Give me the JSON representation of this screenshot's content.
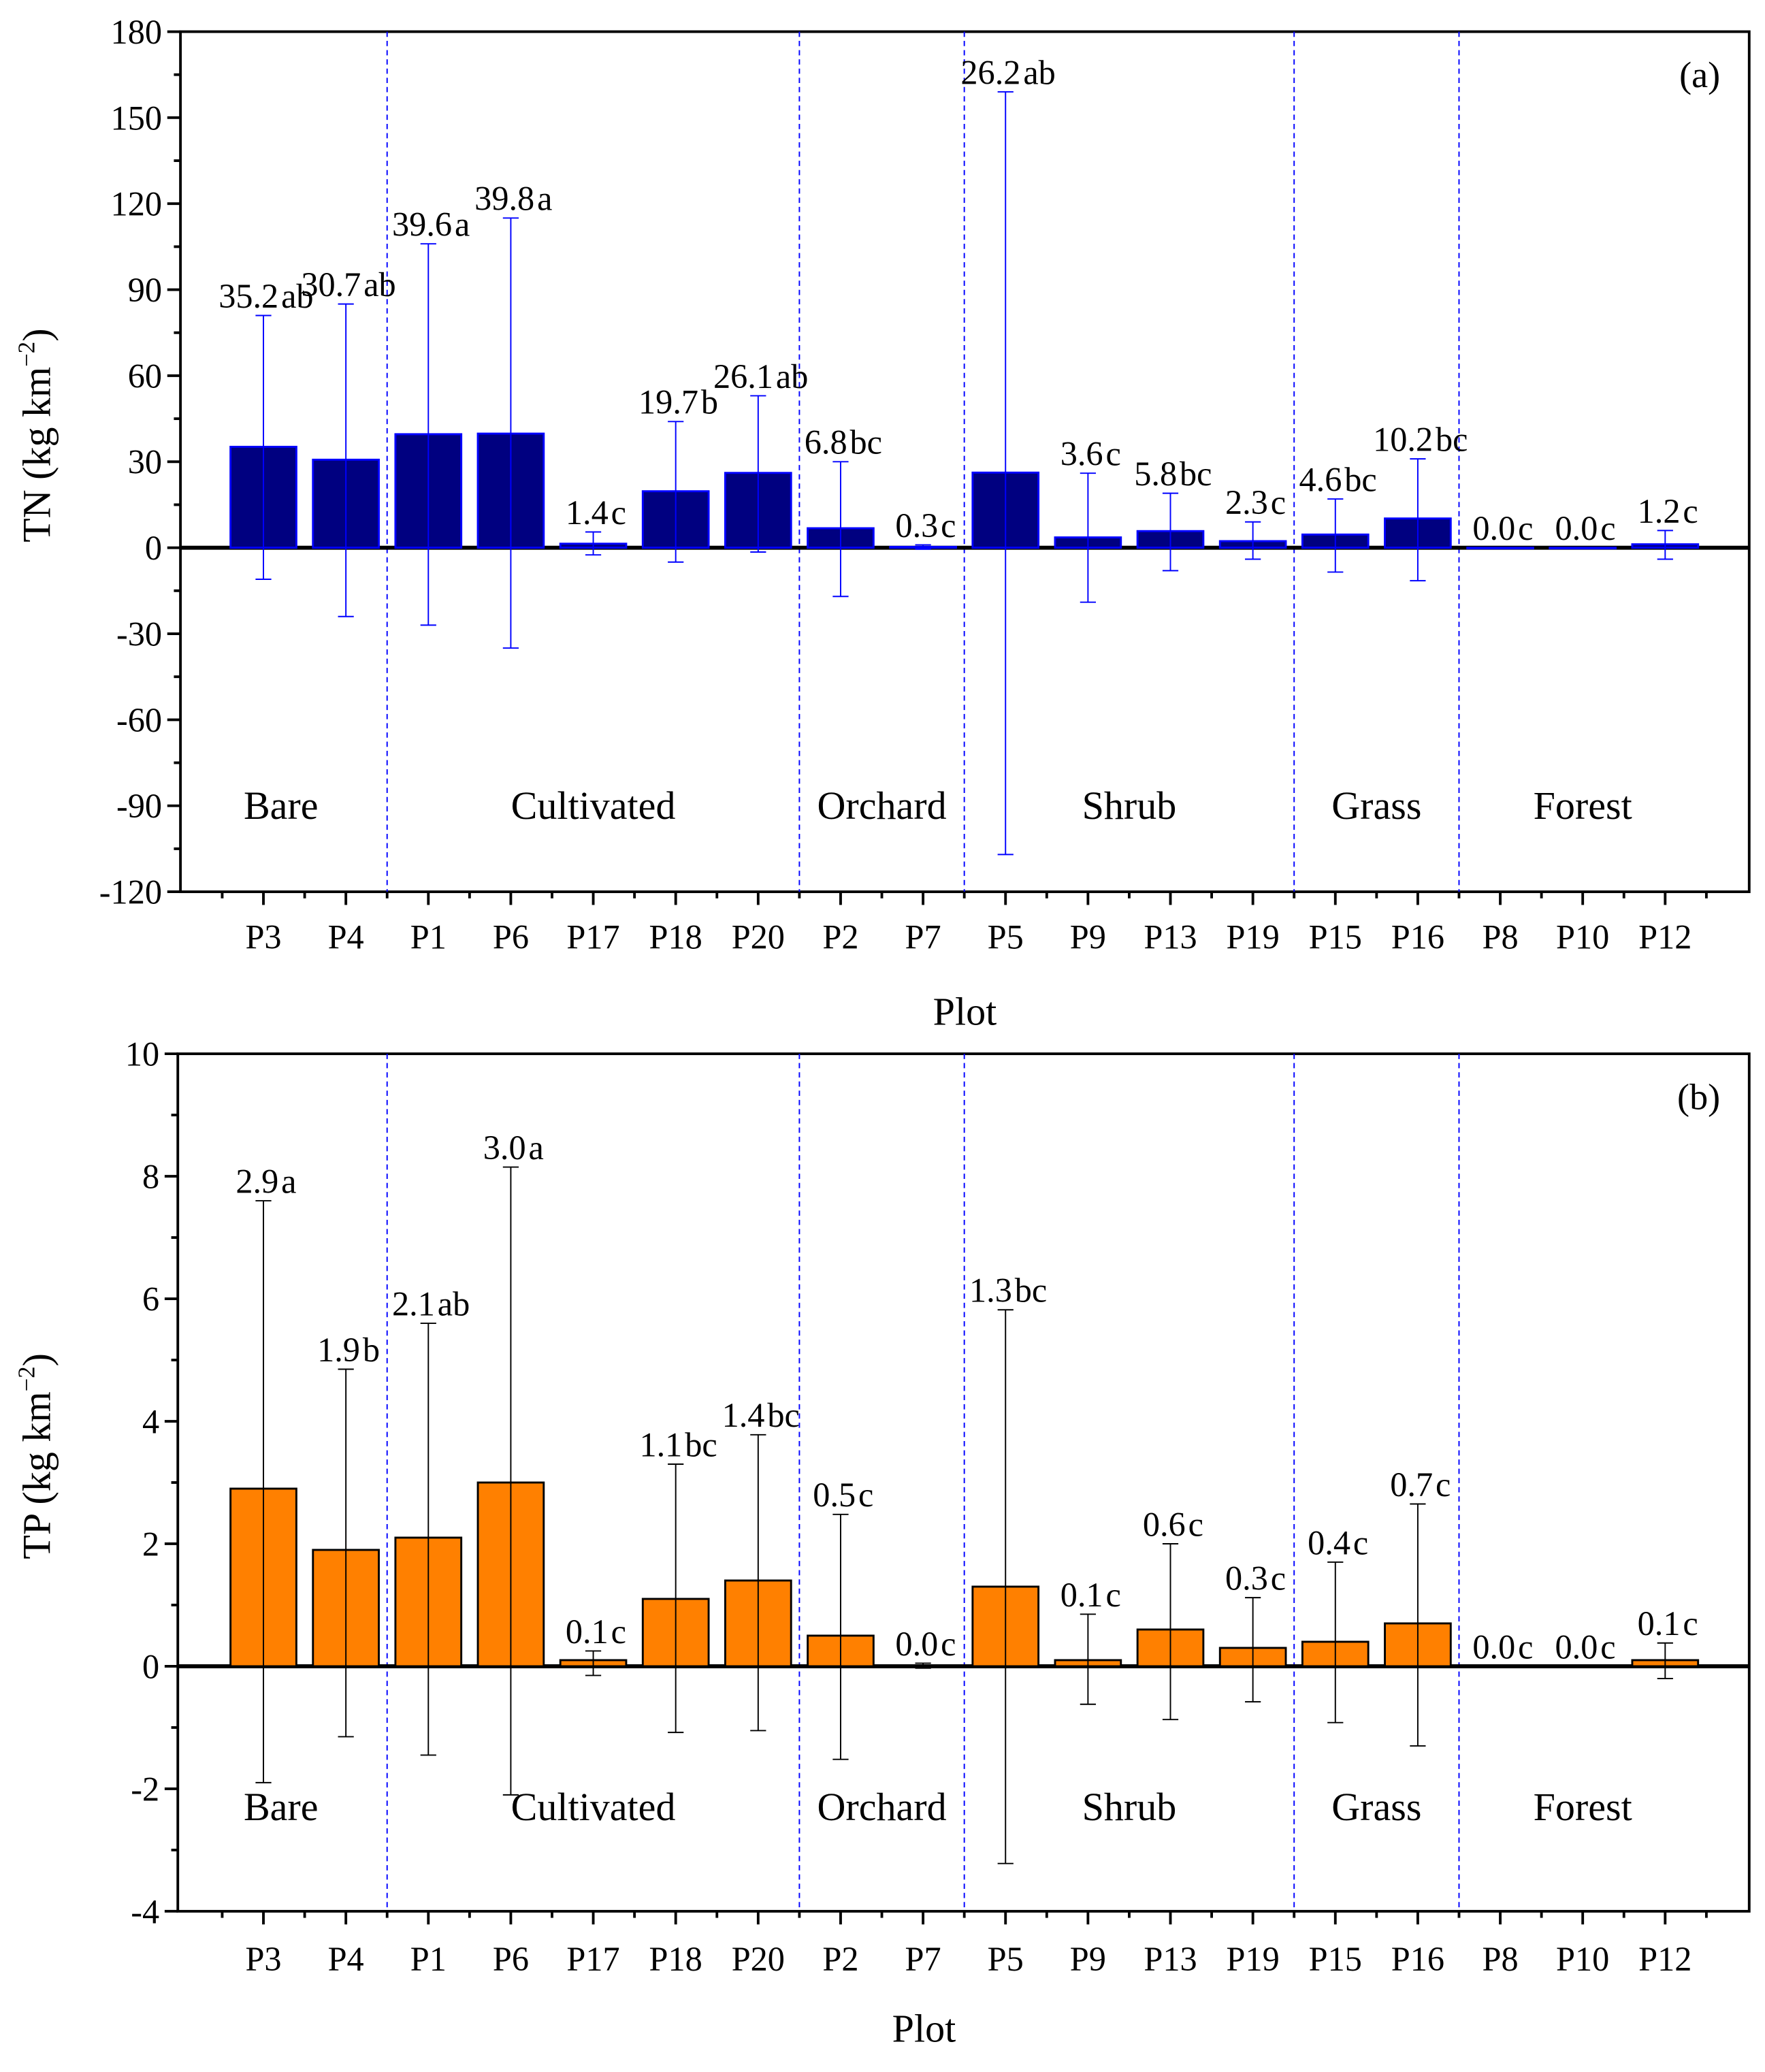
{
  "chart_data": [
    {
      "type": "bar",
      "panel_label": "(a)",
      "title": "",
      "xlabel": "Plot",
      "ylabel": "TN (kg km",
      "ylabel_sup": "−2",
      "ylabel_close": ")",
      "ylim": [
        -120,
        180
      ],
      "yticks": [
        -120,
        -90,
        -60,
        -30,
        0,
        30,
        60,
        90,
        120,
        150,
        180
      ],
      "bar_color": "#000080",
      "bar_edge": "#0000ff",
      "error_color": "#0000ff",
      "categories": [
        "P3",
        "P4",
        "P1",
        "P6",
        "P17",
        "P18",
        "P20",
        "P2",
        "P7",
        "P5",
        "P9",
        "P13",
        "P19",
        "P15",
        "P16",
        "P8",
        "P10",
        "P12"
      ],
      "values": [
        35.2,
        30.7,
        39.6,
        39.8,
        1.4,
        19.7,
        26.1,
        6.8,
        0.3,
        26.2,
        3.6,
        5.8,
        2.3,
        4.6,
        10.2,
        0.0,
        0.0,
        1.2
      ],
      "error_upper": [
        81,
        85,
        106,
        115,
        5.5,
        44,
        53,
        30,
        1,
        159,
        26,
        19,
        9,
        17,
        31,
        0,
        0,
        6
      ],
      "error_lower": [
        -11,
        -24,
        -27,
        -35,
        -2.5,
        -5,
        -1.5,
        -17,
        -0.5,
        -107,
        -19,
        -8,
        -4,
        -8.5,
        -11.5,
        0,
        0,
        -4
      ],
      "letters": [
        "ab",
        "ab",
        "a",
        "a",
        "c",
        "b",
        "ab",
        "bc",
        "c",
        "ab",
        "c",
        "bc",
        "c",
        "bc",
        "bc",
        "c",
        "c",
        "c"
      ],
      "groups": [
        {
          "label": "Bare",
          "start": 0,
          "end": 1
        },
        {
          "label": "Cultivated",
          "start": 2,
          "end": 6
        },
        {
          "label": "Orchard",
          "start": 7,
          "end": 8
        },
        {
          "label": "Shrub",
          "start": 9,
          "end": 12
        },
        {
          "label": "Grass",
          "start": 13,
          "end": 14
        },
        {
          "label": "Forest",
          "start": 15,
          "end": 17
        }
      ],
      "group_label_y": -90
    },
    {
      "type": "bar",
      "panel_label": "(b)",
      "title": "",
      "xlabel": "Plot",
      "ylabel": "TP (kg km",
      "ylabel_sup": "−2",
      "ylabel_close": ")",
      "ylim": [
        -4,
        10
      ],
      "yticks": [
        -4,
        -2,
        0,
        2,
        4,
        6,
        8,
        10
      ],
      "bar_color": "#ff8000",
      "bar_edge": "#000000",
      "error_color": "#000000",
      "categories": [
        "P3",
        "P4",
        "P1",
        "P6",
        "P17",
        "P18",
        "P20",
        "P2",
        "P7",
        "P5",
        "P9",
        "P13",
        "P19",
        "P15",
        "P16",
        "P8",
        "P10",
        "P12"
      ],
      "values": [
        2.9,
        1.9,
        2.1,
        3.0,
        0.1,
        1.1,
        1.4,
        0.5,
        0.0,
        1.3,
        0.1,
        0.6,
        0.3,
        0.4,
        0.7,
        0.0,
        0.0,
        0.1
      ],
      "error_upper": [
        7.6,
        4.85,
        5.6,
        8.15,
        0.25,
        3.3,
        3.78,
        2.48,
        0.05,
        5.82,
        0.85,
        2.0,
        1.12,
        1.7,
        2.65,
        0,
        0,
        0.38
      ],
      "error_lower": [
        -1.9,
        -1.15,
        -1.45,
        -2.1,
        -0.15,
        -1.08,
        -1.05,
        -1.52,
        -0.03,
        -3.22,
        -0.62,
        -0.87,
        -0.58,
        -0.92,
        -1.3,
        0,
        0,
        -0.2
      ],
      "letters": [
        "a",
        "b",
        "ab",
        "a",
        "c",
        "bc",
        "bc",
        "c",
        "c",
        "bc",
        "c",
        "c",
        "c",
        "c",
        "c",
        "c",
        "c",
        "c"
      ],
      "groups": [
        {
          "label": "Bare",
          "start": 0,
          "end": 1
        },
        {
          "label": "Cultivated",
          "start": 2,
          "end": 6
        },
        {
          "label": "Orchard",
          "start": 7,
          "end": 8
        },
        {
          "label": "Shrub",
          "start": 9,
          "end": 12
        },
        {
          "label": "Grass",
          "start": 13,
          "end": 14
        },
        {
          "label": "Forest",
          "start": 15,
          "end": 17
        }
      ],
      "group_label_y": -2.3
    }
  ]
}
